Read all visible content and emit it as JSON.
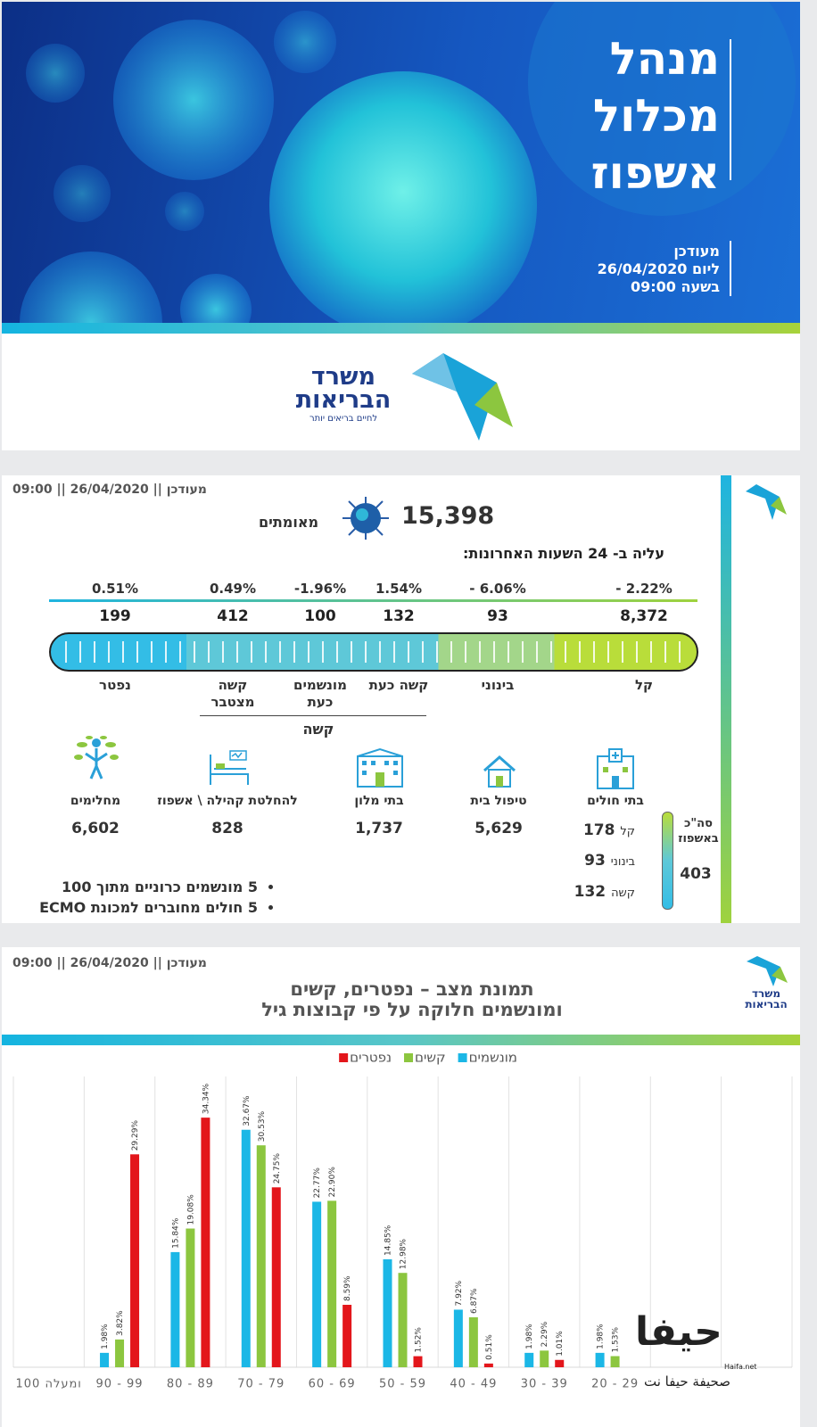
{
  "banner": {
    "title_lines": [
      "מנהל",
      "מכלול",
      "אשפוז"
    ],
    "updated_lines": [
      "מעודכן",
      "ליום 26/04/2020",
      "בשעה 09:00"
    ]
  },
  "ministry_logo": {
    "name_lines": [
      "משרד",
      "הבריאות"
    ],
    "slogan": "לחיים בריאים יותר"
  },
  "dashboard": {
    "updated": "מעודכן || 26/04/2020 || 09:00",
    "confirmed_value": "15,398",
    "confirmed_label": "מאומתים",
    "change_heading": "עליה ב- 24 השעות האחרונות:",
    "severity": [
      {
        "change": "- 2.22%",
        "count": "8,372",
        "label": "קל"
      },
      {
        "change": "- 6.06%",
        "count": "93",
        "label": "בינוני"
      },
      {
        "change": "1.54%",
        "count": "132",
        "label": "קשה כעת"
      },
      {
        "change": "-1.96%",
        "count": "100",
        "label": "מונשמים כעת"
      },
      {
        "change": "0.49%",
        "count": "412",
        "label": "קשה מצטבר"
      },
      {
        "change": "0.51%",
        "count": "199",
        "label": "נפטר"
      }
    ],
    "severe_group_label": "קשה",
    "hospitals": {
      "label": "בתי חולים",
      "total_label": "סה\"כ באשפוז",
      "total": "403",
      "breakdown": [
        {
          "label": "קל",
          "value": "178"
        },
        {
          "label": "בינוני",
          "value": "93"
        },
        {
          "label": "קשה",
          "value": "132"
        }
      ]
    },
    "facilities": [
      {
        "label": "טיפול בית",
        "value": "5,629"
      },
      {
        "label": "בתי מלון",
        "value": "1,737"
      },
      {
        "label": "להחלטת קהילה \\ אשפוז",
        "value": "828"
      },
      {
        "label": "מחלימים",
        "value": "6,602"
      }
    ],
    "notes": [
      "5 מונשמים כרוניים מתוך 100",
      "5 חולים מחוברים למכונת ECMO"
    ]
  },
  "chart_panel": {
    "updated": "מעודכן || 26/04/2020 || 09:00",
    "logo_lines": [
      "משרד",
      "הבריאות"
    ]
  },
  "chart_data": {
    "type": "bar",
    "title": "תמונת מצב – נפטרים, קשים",
    "subtitle": "ומונשמים חלוקה על פי קבוצות גיל",
    "categories": [
      "100 ומעלה",
      "90 - 99",
      "80 - 89",
      "70 - 79",
      "60 - 69",
      "50 - 59",
      "40 - 49",
      "30 - 39",
      "20 - 29",
      null,
      null
    ],
    "series": [
      {
        "name": "מונשמים",
        "color": "#1bb7e6",
        "values": [
          null,
          1.98,
          15.84,
          32.67,
          22.77,
          14.85,
          7.92,
          1.98,
          1.98,
          null,
          null
        ],
        "value_labels": [
          null,
          "1.98%",
          "15.84%",
          "32.67%",
          "22.77%",
          "14.85%",
          "7.92%",
          "1.98%",
          "1.98%",
          null,
          null
        ]
      },
      {
        "name": "קשים",
        "color": "#8cc63f",
        "values": [
          null,
          3.82,
          19.08,
          30.53,
          22.9,
          12.98,
          6.87,
          2.29,
          1.53,
          null,
          null
        ],
        "value_labels": [
          null,
          "3.82%",
          "19.08%",
          "30.53%",
          "22.90%",
          "12.98%",
          "6.87%",
          "2.29%",
          "1.53%",
          null,
          null
        ]
      },
      {
        "name": "נפטרים",
        "color": "#e3161b",
        "values": [
          null,
          29.29,
          34.34,
          24.75,
          8.59,
          1.52,
          0.51,
          1.01,
          null,
          null,
          null
        ],
        "value_labels": [
          null,
          "29.29%",
          "34.34%",
          "24.75%",
          "8.59%",
          "1.52%",
          "0.51%",
          "1.01%",
          null,
          null,
          null
        ]
      }
    ]
  },
  "watermark": {
    "logo": "حيفا",
    "caption": "صحيفة حيفا نت",
    "site": "Haifa.net"
  }
}
